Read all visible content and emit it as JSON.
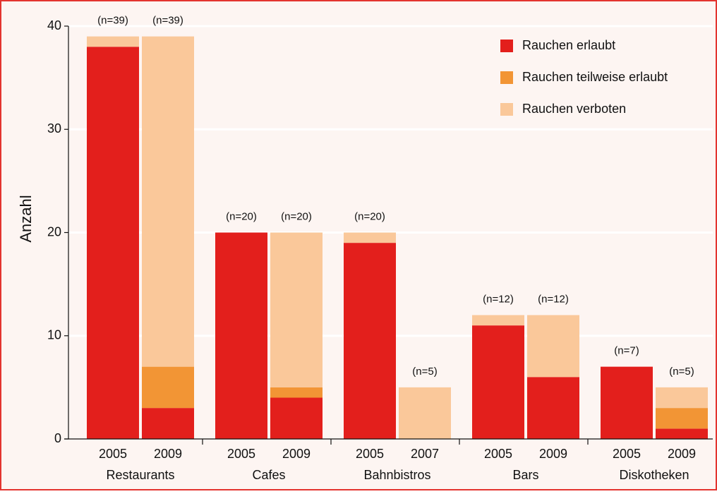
{
  "chart_data": {
    "type": "stacked-bar",
    "ylabel": "Anzahl",
    "categories": [
      "2005",
      "2009",
      "2005",
      "2009",
      "2005",
      "2007",
      "2005",
      "2009",
      "2005",
      "2009"
    ],
    "groups": [
      "Restaurants",
      "Cafes",
      "Bahnbistros",
      "Bars",
      "Diskotheken"
    ],
    "annotations": [
      "(n=39)",
      "(n=39)",
      "(n=20)",
      "(n=20)",
      "(n=20)",
      "(n=5)",
      "(n=12)",
      "(n=12)",
      "(n=7)",
      "(n=5)"
    ],
    "series": [
      {
        "name": "Rauchen erlaubt",
        "color": "#e31f1c",
        "values": [
          38,
          3,
          20,
          4,
          19,
          0,
          11,
          6,
          7,
          1
        ]
      },
      {
        "name": "Rauchen teilweise erlaubt",
        "color": "#f29535",
        "values": [
          0,
          4,
          0,
          1,
          0,
          0,
          0,
          0,
          0,
          2
        ]
      },
      {
        "name": "Rauchen verboten",
        "color": "#fac89a",
        "values": [
          1,
          32,
          0,
          15,
          1,
          5,
          1,
          6,
          0,
          2
        ]
      }
    ],
    "ylim": [
      0,
      40
    ],
    "yticks": [
      0,
      10,
      20,
      30,
      40
    ],
    "grid": true,
    "legend": "top-right"
  }
}
